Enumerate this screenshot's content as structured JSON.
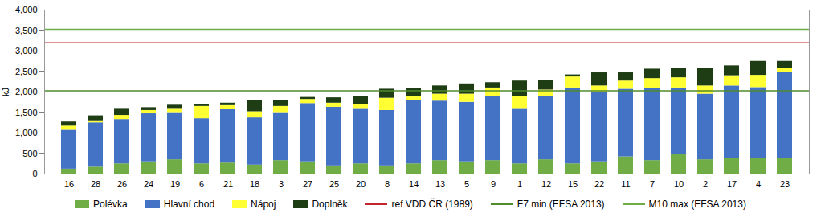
{
  "chart_data": {
    "type": "bar",
    "stacked": true,
    "legend": "bottom",
    "grid": false,
    "y_label": "kJ",
    "categories": [
      "16",
      "28",
      "26",
      "24",
      "19",
      "6",
      "21",
      "18",
      "3",
      "27",
      "25",
      "20",
      "8",
      "14",
      "13",
      "5",
      "9",
      "1",
      "12",
      "15",
      "22",
      "11",
      "7",
      "10",
      "2",
      "17",
      "4",
      "23"
    ],
    "ylim": [
      0,
      4000
    ],
    "yticks": [
      0,
      500,
      1000,
      1500,
      2000,
      2500,
      3000,
      3500,
      4000
    ],
    "series": [
      {
        "name": "Polévka",
        "color": "#70ad47",
        "values": [
          120,
          170,
          250,
          300,
          350,
          250,
          270,
          220,
          330,
          300,
          200,
          250,
          200,
          250,
          330,
          300,
          330,
          250,
          350,
          250,
          300,
          420,
          330,
          470,
          350,
          380,
          380,
          380
        ]
      },
      {
        "name": "Hlavní chod",
        "color": "#4472c4",
        "values": [
          950,
          1080,
          1080,
          1170,
          1150,
          1100,
          1300,
          1150,
          1170,
          1420,
          1430,
          1350,
          1350,
          1550,
          1450,
          1450,
          1570,
          1350,
          1550,
          1850,
          1700,
          1650,
          1750,
          1630,
          1600,
          1770,
          1730,
          2100
        ]
      },
      {
        "name": "Nápoj",
        "color": "#ffff33",
        "values": [
          100,
          50,
          100,
          80,
          100,
          300,
          100,
          150,
          150,
          100,
          100,
          100,
          300,
          100,
          170,
          200,
          200,
          300,
          150,
          270,
          150,
          200,
          250,
          250,
          200,
          250,
          300,
          100
        ]
      },
      {
        "name": "Doplněk",
        "color": "#1e3d14",
        "values": [
          100,
          120,
          170,
          70,
          80,
          50,
          60,
          280,
          150,
          50,
          130,
          200,
          220,
          180,
          200,
          250,
          130,
          370,
          230,
          50,
          320,
          200,
          230,
          230,
          430,
          240,
          340,
          170
        ]
      },
      {
        "name": "ref VDD ČR (1989)",
        "type": "rule",
        "color": "#c0262d",
        "value": 3200
      },
      {
        "name": "F7 min (EFSA 2013)",
        "type": "rule",
        "color": "#4f8a2c",
        "value": 2030
      },
      {
        "name": "M10 max (EFSA 2013)",
        "type": "rule",
        "color": "#70ad47",
        "value": 3530
      }
    ]
  }
}
